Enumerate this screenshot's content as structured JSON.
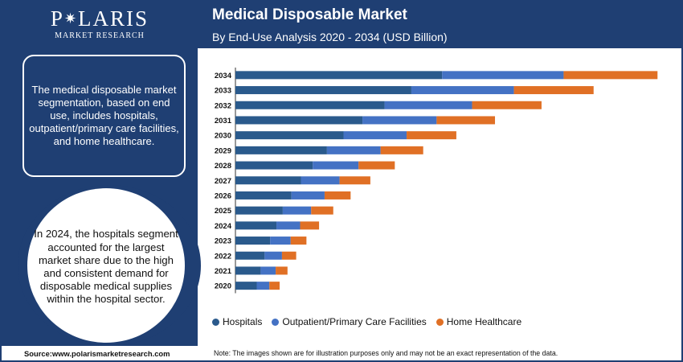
{
  "brand": {
    "name": "POLARIS",
    "tagline": "MARKET RESEARCH"
  },
  "header": {
    "title": "Medical Disposable Market",
    "subtitle": "By End-Use Analysis 2020 - 2034 (USD Billion)"
  },
  "sidebar": {
    "box_text": "The medical disposable market segmentation, based on end use, includes hospitals, outpatient/primary care facilities, and home healthcare.",
    "circle_text": "In 2024, the hospitals segment accounted for the largest market share due to the high and consistent demand for disposable medical supplies within the hospital sector."
  },
  "footer": {
    "source": "Source:www.polarismarketresearch.com",
    "note": "Note: The images shown are for illustration purposes only and may not be an exact representation of the data."
  },
  "colors": {
    "navy": "#1f3f73",
    "hospitals": "#2a5a8c",
    "outpatient": "#4472c4",
    "home": "#e07025"
  },
  "chart_data": {
    "type": "bar",
    "orientation": "horizontal",
    "stacked": true,
    "categories": [
      "2034",
      "2033",
      "2032",
      "2031",
      "2030",
      "2029",
      "2028",
      "2027",
      "2026",
      "2025",
      "2024",
      "2023",
      "2022",
      "2021",
      "2020"
    ],
    "series": [
      {
        "name": "Hospitals",
        "color": "#2a5a8c",
        "values": [
          26.2,
          22.3,
          18.9,
          16.1,
          13.7,
          11.6,
          9.8,
          8.3,
          7.1,
          6.0,
          5.2,
          4.4,
          3.7,
          3.2,
          2.7
        ]
      },
      {
        "name": "Outpatient/Primary Care Facilities",
        "color": "#4472c4",
        "values": [
          15.4,
          13.0,
          11.1,
          9.4,
          8.0,
          6.8,
          5.8,
          4.9,
          4.2,
          3.6,
          3.0,
          2.6,
          2.2,
          1.9,
          1.6
        ]
      },
      {
        "name": "Home Healthcare",
        "color": "#e07025",
        "values": [
          11.9,
          10.1,
          8.8,
          7.4,
          6.3,
          5.4,
          4.6,
          3.9,
          3.3,
          2.8,
          2.4,
          2.0,
          1.8,
          1.5,
          1.3
        ]
      }
    ],
    "xlim": [
      0,
      55
    ],
    "grid": false,
    "legend_position": "bottom"
  }
}
